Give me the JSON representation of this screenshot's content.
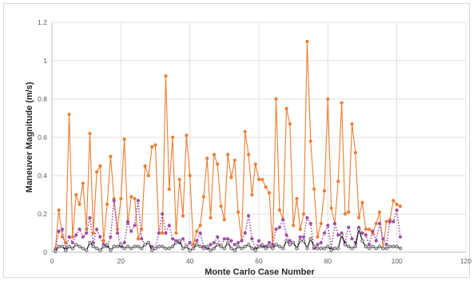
{
  "chart_data": {
    "type": "line",
    "title": "",
    "xlabel": "Monte Carlo Case Number",
    "ylabel": "Maneuver Magnitude (m/s)",
    "xlim": [
      0,
      120
    ],
    "ylim": [
      0,
      1.2
    ],
    "x_ticks": [
      "0",
      "20",
      "40",
      "60",
      "80",
      "100",
      "120"
    ],
    "y_ticks": [
      "0",
      "0.2",
      "0.4",
      "0.6",
      "0.8",
      "1",
      "1.2"
    ],
    "grid": true,
    "legend": "none",
    "x": [
      1,
      2,
      3,
      4,
      5,
      6,
      7,
      8,
      9,
      10,
      11,
      12,
      13,
      14,
      15,
      16,
      17,
      18,
      19,
      20,
      21,
      22,
      23,
      24,
      25,
      26,
      27,
      28,
      29,
      30,
      31,
      32,
      33,
      34,
      35,
      36,
      37,
      38,
      39,
      40,
      41,
      42,
      43,
      44,
      45,
      46,
      47,
      48,
      49,
      50,
      51,
      52,
      53,
      54,
      55,
      56,
      57,
      58,
      59,
      60,
      61,
      62,
      63,
      64,
      65,
      66,
      67,
      68,
      69,
      70,
      71,
      72,
      73,
      74,
      75,
      76,
      77,
      78,
      79,
      80,
      81,
      82,
      83,
      84,
      85,
      86,
      87,
      88,
      89,
      90,
      91,
      92,
      93,
      94,
      95,
      96,
      97,
      98,
      99,
      100,
      101
    ],
    "series": [
      {
        "color": "#ed7d31",
        "line_style": "solid",
        "marker": "circle",
        "values": [
          0.02,
          0.22,
          0.08,
          0.05,
          0.72,
          0.08,
          0.3,
          0.25,
          0.36,
          0.12,
          0.62,
          0.1,
          0.42,
          0.45,
          0.06,
          0.25,
          0.5,
          0.28,
          0.12,
          0.28,
          0.59,
          0.15,
          0.29,
          0.28,
          0.07,
          0.12,
          0.45,
          0.4,
          0.55,
          0.56,
          0.1,
          0.1,
          0.92,
          0.33,
          0.6,
          0.1,
          0.38,
          0.19,
          0.61,
          0.4,
          0.04,
          0.11,
          0.14,
          0.29,
          0.49,
          0.18,
          0.51,
          0.46,
          0.24,
          0.17,
          0.51,
          0.39,
          0.48,
          0.21,
          0.06,
          0.63,
          0.51,
          0.3,
          0.46,
          0.38,
          0.38,
          0.34,
          0.31,
          0.03,
          0.8,
          0.22,
          0.17,
          0.75,
          0.67,
          0.14,
          0.28,
          0.12,
          0.2,
          1.1,
          0.58,
          0.33,
          0.08,
          0.15,
          0.32,
          0.8,
          0.23,
          0.15,
          0.37,
          0.78,
          0.2,
          0.21,
          0.67,
          0.52,
          0.18,
          0.26,
          0.12,
          0.12,
          0.1,
          0.15,
          0.21,
          0.02,
          0.16,
          0.17,
          0.27,
          0.25,
          0.24
        ]
      },
      {
        "color": "#9e4fa1",
        "line_style": "dotted",
        "marker": "circle",
        "values": [
          0.01,
          0.11,
          0.12,
          0.02,
          0.08,
          0.05,
          0.09,
          0.12,
          0.08,
          0.1,
          0.18,
          0.05,
          0.12,
          0.08,
          0.04,
          0.03,
          0.08,
          0.27,
          0.1,
          0.03,
          0.05,
          0.16,
          0.11,
          0.14,
          0.27,
          0.07,
          0.04,
          0.05,
          0.03,
          0.02,
          0.1,
          0.2,
          0.1,
          0.14,
          0.07,
          0.06,
          0.05,
          0.07,
          0.03,
          0.05,
          0.02,
          0.06,
          0.1,
          0.03,
          0.02,
          0.04,
          0.05,
          0.08,
          0.03,
          0.07,
          0.07,
          0.06,
          0.04,
          0.05,
          0.06,
          0.1,
          0.19,
          0.07,
          0.02,
          0.06,
          0.03,
          0.03,
          0.05,
          0.04,
          0.12,
          0.13,
          0.17,
          0.09,
          0.06,
          0.05,
          0.02,
          0.08,
          0.08,
          0.18,
          0.15,
          0.02,
          0.04,
          0.05,
          0.1,
          0.14,
          0.02,
          0.15,
          0.09,
          0.1,
          0.05,
          0.13,
          0.07,
          0.05,
          0.13,
          0.1,
          0.09,
          0.04,
          0.11,
          0.06,
          0.15,
          0.07,
          0.04,
          0.16,
          0.16,
          0.22,
          0.08
        ]
      },
      {
        "color": "#000000",
        "line_style": "solid",
        "marker": "circle",
        "values": [
          0.005,
          0.03,
          0.03,
          0.01,
          0.03,
          0.02,
          0.04,
          0.03,
          0.02,
          0.01,
          0.05,
          0.03,
          0.02,
          0.01,
          0.03,
          0.04,
          0.01,
          0.03,
          0.03,
          0.04,
          0.02,
          0.03,
          0.02,
          0.03,
          0.03,
          0.02,
          0.04,
          0.05,
          0.01,
          0.02,
          0.03,
          0.03,
          0.02,
          0.02,
          0.03,
          0.05,
          0.06,
          0.02,
          0.03,
          0.01,
          0.02,
          0.04,
          0.03,
          0.02,
          0.03,
          0.01,
          0.02,
          0.04,
          0.03,
          0.02,
          0.05,
          0.02,
          0.01,
          0.03,
          0.02,
          0.03,
          0.04,
          0.02,
          0.01,
          0.03,
          0.04,
          0.02,
          0.03,
          0.02,
          0.04,
          0.03,
          0.02,
          0.06,
          0.04,
          0.05,
          0.02,
          0.06,
          0.06,
          0.02,
          0.07,
          0.03,
          0.02,
          0.02,
          0.02,
          0.03,
          0.01,
          0.02,
          0.02,
          0.09,
          0.04,
          0.03,
          0.02,
          0.03,
          0.12,
          0.06,
          0.03,
          0.02,
          0.03,
          0.02,
          0.03,
          0.02,
          0.02,
          0.03,
          0.03,
          0.03,
          0.02
        ]
      }
    ]
  }
}
